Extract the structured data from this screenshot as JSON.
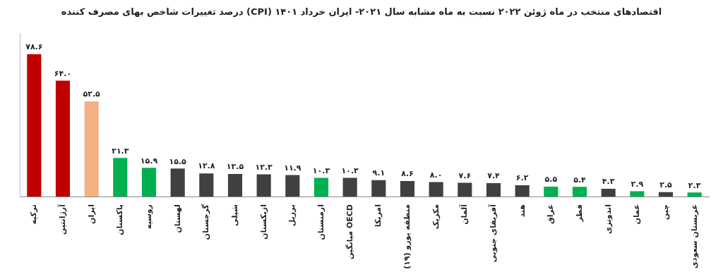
{
  "chart_data": {
    "type": "bar",
    "title": "درصد تغییرات شاخص بهای مصرف کننده (CPI) اقتصادهای منتخب در ماه ژوئن ۲۰۲۲ نسبت به ماه مشابه سال ۲۰۲۱- ایران خرداد ۱۴۰۱",
    "categories": [
      "ترکیه",
      "آرژانتین",
      "ایران",
      "پاکستان",
      "روسیه",
      "لهستان",
      "گرجستان",
      "شیلی",
      "ازبکستان",
      "برزیل",
      "ارمنستان",
      "میانگین OECD",
      "امریکا",
      "منطقه یورو (۱۹)",
      "مکزیک",
      "آلمان",
      "آفریقای جنوبی",
      "هند",
      "عراق",
      "قطر",
      "اندونزی",
      "عمان",
      "چین",
      "عربستان سعودی"
    ],
    "values": [
      78.6,
      64.0,
      52.5,
      21.3,
      15.9,
      15.5,
      12.8,
      12.5,
      12.3,
      11.9,
      10.3,
      10.3,
      9.1,
      8.6,
      8.0,
      7.6,
      7.4,
      6.2,
      5.5,
      5.4,
      4.3,
      2.9,
      2.5,
      2.3
    ],
    "value_labels": [
      "۷۸.۶",
      "۶۴.۰",
      "۵۲.۵",
      "۲۱.۳",
      "۱۵.۹",
      "۱۵.۵",
      "۱۲.۸",
      "۱۲.۵",
      "۱۲.۳",
      "۱۱.۹",
      "۱۰.۳",
      "۱۰.۳",
      "۹.۱",
      "۸.۶",
      "۸.۰",
      "۷.۶",
      "۷.۴",
      "۶.۲",
      "۵.۵",
      "۵.۴",
      "۴.۳",
      "۲.۹",
      "۲.۵",
      "۲.۳"
    ],
    "colors": [
      "#c00000",
      "#c00000",
      "#f4b183",
      "#00b050",
      "#00b050",
      "#404040",
      "#404040",
      "#404040",
      "#404040",
      "#404040",
      "#00b050",
      "#404040",
      "#404040",
      "#404040",
      "#404040",
      "#404040",
      "#404040",
      "#404040",
      "#00b050",
      "#00b050",
      "#404040",
      "#00b050",
      "#404040",
      "#00b050"
    ],
    "ylim": [
      0,
      90
    ],
    "grid": false,
    "data_labels": true,
    "tick_labels": "x"
  }
}
